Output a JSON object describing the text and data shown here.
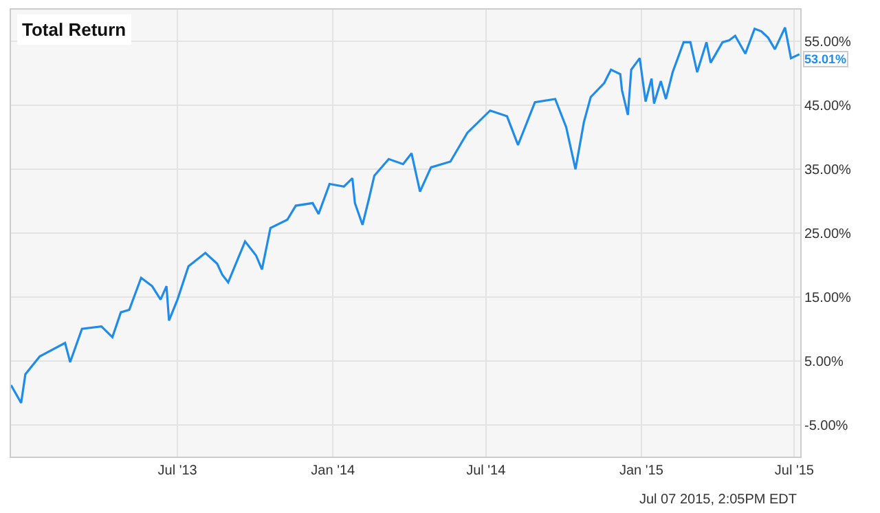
{
  "chart_data": {
    "type": "line",
    "title": "Total Return",
    "x": [
      "2012-12-16",
      "2012-12-28",
      "2013-01-02",
      "2013-01-19",
      "2013-02-18",
      "2013-02-24",
      "2013-03-10",
      "2013-04-02",
      "2013-04-15",
      "2013-04-25",
      "2013-05-05",
      "2013-05-19",
      "2013-06-01",
      "2013-06-11",
      "2013-06-18",
      "2013-06-21",
      "2013-07-01",
      "2013-07-14",
      "2013-08-03",
      "2013-08-17",
      "2013-08-23",
      "2013-08-30",
      "2013-09-19",
      "2013-10-02",
      "2013-10-09",
      "2013-10-19",
      "2013-11-08",
      "2013-11-18",
      "2013-12-08",
      "2013-12-15",
      "2013-12-28",
      "2014-01-14",
      "2014-01-24",
      "2014-01-27",
      "2014-02-05",
      "2014-02-13",
      "2014-02-19",
      "2014-03-08",
      "2014-03-25",
      "2014-04-04",
      "2014-04-14",
      "2014-04-27",
      "2014-05-20",
      "2014-06-09",
      "2014-07-06",
      "2014-07-26",
      "2014-08-08",
      "2014-08-28",
      "2014-09-21",
      "2014-10-04",
      "2014-10-15",
      "2014-10-25",
      "2014-11-02",
      "2014-11-18",
      "2014-11-26",
      "2014-12-07",
      "2014-12-09",
      "2014-12-16",
      "2014-12-20",
      "2014-12-30",
      "2015-01-06",
      "2015-01-13",
      "2015-01-16",
      "2015-01-24",
      "2015-01-30",
      "2015-02-07",
      "2015-02-20",
      "2015-02-28",
      "2015-03-08",
      "2015-03-19",
      "2015-03-24",
      "2015-04-07",
      "2015-04-15",
      "2015-04-22",
      "2015-05-04",
      "2015-05-15",
      "2015-05-23",
      "2015-05-31",
      "2015-06-08",
      "2015-06-20",
      "2015-06-27",
      "2015-07-07"
    ],
    "series": [
      {
        "color": "#1f8ceb",
        "values": [
          1.2,
          -1.6,
          2.9,
          5.7,
          7.8,
          4.8,
          10.0,
          10.4,
          8.7,
          12.6,
          13.0,
          18.0,
          16.7,
          14.6,
          16.7,
          11.3,
          14.6,
          19.8,
          21.9,
          20.2,
          18.5,
          17.3,
          23.7,
          21.5,
          19.3,
          25.8,
          27.1,
          29.3,
          29.7,
          28.0,
          32.7,
          32.3,
          33.6,
          29.7,
          26.3,
          30.6,
          34.0,
          36.6,
          35.8,
          37.5,
          31.5,
          35.3,
          36.2,
          40.7,
          44.2,
          43.3,
          38.8,
          45.5,
          46.0,
          41.6,
          35.0,
          42.4,
          46.3,
          48.5,
          50.6,
          49.9,
          47.4,
          43.5,
          50.6,
          52.4,
          45.6,
          49.2,
          45.3,
          48.8,
          46.0,
          50.2,
          54.9,
          54.9,
          50.2,
          54.9,
          51.7,
          54.9,
          55.2,
          55.9,
          53.1,
          57.0,
          56.6,
          55.6,
          53.8,
          57.2,
          52.4,
          53.01
        ],
        "value_labels": [
          null,
          null,
          null,
          null,
          null,
          null,
          null,
          null,
          null,
          null,
          null,
          null,
          null,
          null,
          null,
          null,
          null,
          null,
          null,
          null,
          null,
          null,
          null,
          null,
          null,
          null,
          null,
          null,
          null,
          null,
          null,
          null,
          null,
          null,
          null,
          null,
          null,
          null,
          null,
          null,
          null,
          null,
          null,
          null,
          null,
          null,
          null,
          null,
          null,
          null,
          null,
          null,
          null,
          null,
          null,
          null,
          null,
          null,
          null,
          null,
          null,
          null,
          null,
          null,
          null,
          null,
          null,
          null,
          null,
          null,
          null,
          null,
          null,
          null,
          null,
          null,
          null,
          null,
          null,
          null,
          null,
          "53.01%"
        ]
      }
    ],
    "xlim": [
      "2012-12-16",
      "2015-07-08"
    ],
    "xticks": [
      {
        "value": "2013-07-01",
        "label": "Jul '13"
      },
      {
        "value": "2014-01-01",
        "label": "Jan '14"
      },
      {
        "value": "2014-07-01",
        "label": "Jul '14"
      },
      {
        "value": "2015-01-01",
        "label": "Jan '15"
      },
      {
        "value": "2015-07-01",
        "label": "Jul '15"
      }
    ],
    "ylim": [
      -10,
      60
    ],
    "yticks": [
      {
        "value": -5,
        "label": "-5.00%"
      },
      {
        "value": 5,
        "label": "5.00%"
      },
      {
        "value": 15,
        "label": "15.00%"
      },
      {
        "value": 25,
        "label": "25.00%"
      },
      {
        "value": 35,
        "label": "35.00%"
      },
      {
        "value": 45,
        "label": "45.00%"
      },
      {
        "value": 55,
        "label": "55.00%"
      }
    ],
    "grid": true,
    "marker": "none",
    "line_style": "solid",
    "annotations": [
      "Jul 07 2015, 2:05PM EDT"
    ]
  }
}
